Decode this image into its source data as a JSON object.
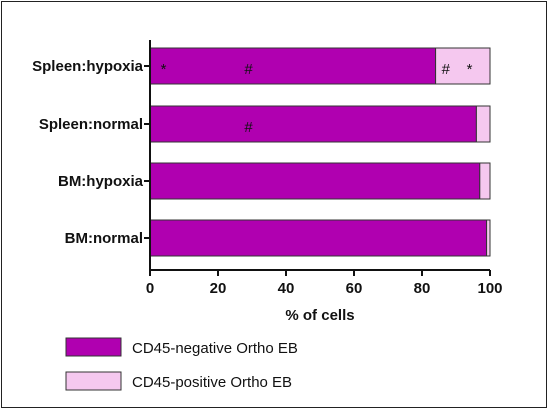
{
  "chart_data": {
    "type": "bar",
    "orientation": "horizontal",
    "stacked": true,
    "categories": [
      "Spleen:hypoxia",
      "Spleen:normal",
      "BM:hypoxia",
      "BM:normal"
    ],
    "series": [
      {
        "name": "CD45-negative Ortho EB",
        "color": "#b000b0",
        "values": [
          84,
          96,
          97,
          99
        ]
      },
      {
        "name": "CD45-positive Ortho EB",
        "color": "#f5c8ef",
        "values": [
          16,
          4,
          3,
          1
        ]
      }
    ],
    "xlabel": "% of  cells",
    "ylabel": "",
    "xlim": [
      0,
      100
    ],
    "xticks": [
      "0",
      "20",
      "40",
      "60",
      "80",
      "100"
    ],
    "legend_position": "bottom-left",
    "annotations": [
      {
        "category": "Spleen:hypoxia",
        "x": 4,
        "text": "*"
      },
      {
        "category": "Spleen:hypoxia",
        "x": 29,
        "text": "#"
      },
      {
        "category": "Spleen:hypoxia",
        "x": 87,
        "text": "#"
      },
      {
        "category": "Spleen:hypoxia",
        "x": 94,
        "text": "*"
      },
      {
        "category": "Spleen:normal",
        "x": 29,
        "text": "#"
      }
    ]
  }
}
